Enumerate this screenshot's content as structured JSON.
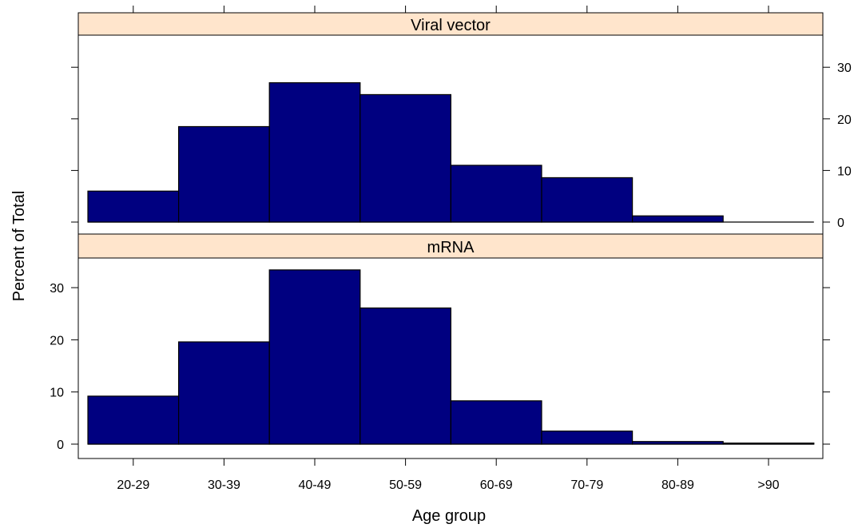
{
  "chart_data": {
    "type": "bar",
    "title": "",
    "xlabel": "Age group",
    "ylabel": "Percent of Total",
    "categories": [
      "20-29",
      "30-39",
      "40-49",
      "50-59",
      "60-69",
      "70-79",
      "80-89",
      ">90"
    ],
    "ylim": [
      -3,
      36
    ],
    "y_ticks": [
      0,
      10,
      20,
      30
    ],
    "grid": false,
    "legend": "none",
    "bar_color": "#000080",
    "strip_color": "#FFE5CC",
    "panels": [
      {
        "name": "Viral vector",
        "values": [
          6.0,
          18.5,
          27.0,
          24.7,
          11.0,
          8.6,
          1.2,
          0.0
        ],
        "y_axis_side": "right"
      },
      {
        "name": "mRNA",
        "values": [
          9.2,
          19.6,
          33.4,
          26.1,
          8.3,
          2.5,
          0.5,
          0.2
        ],
        "y_axis_side": "left"
      }
    ]
  }
}
